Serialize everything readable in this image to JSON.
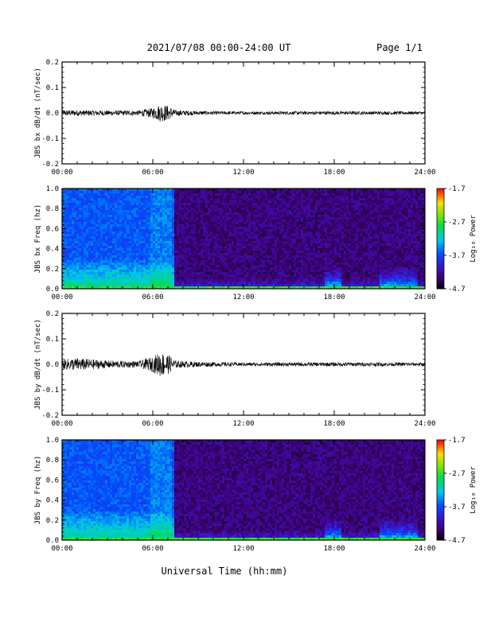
{
  "header": {
    "title": "2021/07/08  00:00-24:00 UT",
    "page": "Page 1/1"
  },
  "xaxis": {
    "label": "Universal Time (hh:mm)",
    "ticks": [
      "00:00",
      "06:00",
      "12:00",
      "18:00",
      "24:00"
    ]
  },
  "colorbar": {
    "label": "Log₁₀ Power",
    "ticks": [
      "-1.7",
      "-2.7",
      "-3.7",
      "-4.7"
    ],
    "range": [
      -4.7,
      -1.7
    ]
  },
  "chart_data": [
    {
      "type": "line",
      "title": "",
      "ylabel": "JBS bx dB/dt (nT/sec)",
      "xlabel": "",
      "xlim": [
        0,
        24
      ],
      "ylim": [
        -0.2,
        0.2
      ],
      "yticks": [
        "0.2",
        "0.1",
        "0.0",
        "-0.1",
        "-0.2"
      ],
      "series": [
        {
          "values_summary": "noisy signal centered at 0.0; baseline amplitude ~0.01 nT/sec, burst up to ~0.04 nT/sec near 06:00-07:30 UT"
        }
      ],
      "envelope": {
        "x": [
          0,
          1,
          3,
          5,
          6,
          6.5,
          7,
          7.5,
          9,
          12,
          18,
          24
        ],
        "amplitude": [
          0.012,
          0.012,
          0.01,
          0.01,
          0.02,
          0.035,
          0.03,
          0.012,
          0.008,
          0.006,
          0.007,
          0.006
        ]
      }
    },
    {
      "type": "heatmap",
      "title": "",
      "ylabel": "JBS bx Freq (hz)",
      "xlim": [
        0,
        24
      ],
      "ylim": [
        0.0,
        1.0
      ],
      "yticks": [
        "1.0",
        "0.8",
        "0.6",
        "0.4",
        "0.2",
        "0.0"
      ],
      "zlim": [
        -4.7,
        -1.7
      ],
      "description_values": {
        "high_power_interval_hours": [
          0,
          7.5
        ],
        "low_power_interval_hours": [
          7.5,
          24
        ]
      }
    },
    {
      "type": "line",
      "title": "",
      "ylabel": "JBS by dB/dt (nT/sec)",
      "xlabel": "",
      "xlim": [
        0,
        24
      ],
      "ylim": [
        -0.2,
        0.2
      ],
      "yticks": [
        "0.2",
        "0.1",
        "0.0",
        "-0.1",
        "-0.2"
      ],
      "envelope": {
        "x": [
          0,
          1,
          3,
          5,
          6,
          6.5,
          7,
          7.5,
          9,
          12,
          18,
          24
        ],
        "amplitude": [
          0.02,
          0.025,
          0.015,
          0.012,
          0.03,
          0.05,
          0.04,
          0.015,
          0.01,
          0.007,
          0.008,
          0.007
        ]
      }
    },
    {
      "type": "heatmap",
      "title": "",
      "ylabel": "JBS by Freq (hz)",
      "xlim": [
        0,
        24
      ],
      "ylim": [
        0.0,
        1.0
      ],
      "yticks": [
        "1.0",
        "0.8",
        "0.6",
        "0.4",
        "0.2",
        "0.0"
      ],
      "zlim": [
        -4.7,
        -1.7
      ],
      "description_values": {
        "high_power_interval_hours": [
          0,
          7.5
        ],
        "low_power_interval_hours": [
          7.5,
          24
        ]
      }
    }
  ]
}
